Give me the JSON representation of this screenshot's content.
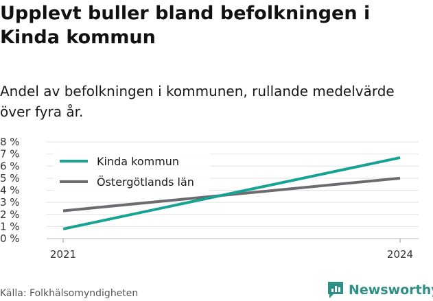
{
  "title": "Upplevt buller bland befolkningen i Kinda kommun",
  "subtitle": "Andel av befolkningen i kommunen, rullande medelvärde över fyra år.",
  "source": "Källa: Folkhälsomyndigheten",
  "brand": {
    "name": "Newsworthy",
    "icon": "newsworthy-logo-icon",
    "color": "#2e8f86"
  },
  "chart_data": {
    "type": "line",
    "x": [
      "2021",
      "2024"
    ],
    "ylim": [
      0,
      8
    ],
    "yticks": [
      "0 %",
      "1 %",
      "2 %",
      "3 %",
      "4 %",
      "5 %",
      "6 %",
      "7 %",
      "8 %"
    ],
    "grid": true,
    "legend_position": "top-left",
    "series": [
      {
        "name": "Kinda kommun",
        "color": "#16a394",
        "values": [
          0.8,
          6.7
        ]
      },
      {
        "name": "Östergötlands län",
        "color": "#6b6b70",
        "values": [
          2.3,
          5.0
        ]
      }
    ]
  }
}
